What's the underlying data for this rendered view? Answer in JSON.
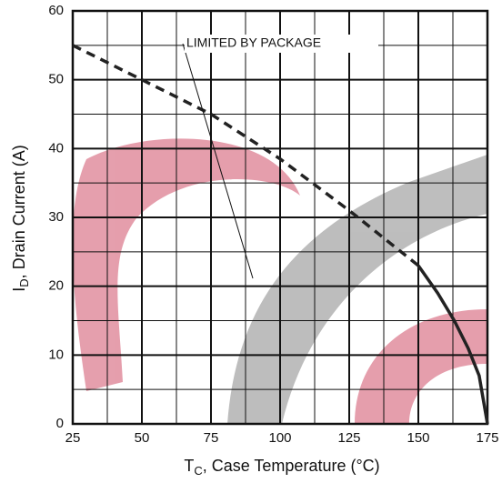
{
  "chart_data": {
    "type": "line",
    "xlabel": {
      "main": "T",
      "sub": "C",
      "rest": ", Case Temperature  (°C)"
    },
    "ylabel": {
      "main": "I",
      "sub": "D",
      "rest": ", Drain Current (A)"
    },
    "annotation": "LIMITED BY PACKAGE",
    "series": [
      {
        "x": [
          25,
          50,
          75,
          100,
          125,
          150
        ],
        "values": [
          55,
          50,
          45,
          38.5,
          31,
          23
        ],
        "color": "#222222",
        "dashed": true
      },
      {
        "x": [
          150,
          157,
          163,
          168,
          172,
          175
        ],
        "values": [
          23,
          19,
          15,
          11,
          7,
          0
        ],
        "color": "#222222",
        "dashed": false
      }
    ],
    "xlim": [
      25,
      175
    ],
    "ylim": [
      0,
      60
    ],
    "xticks": [
      25,
      50,
      75,
      100,
      125,
      150,
      175
    ],
    "yticks": [
      0,
      10,
      20,
      30,
      40,
      50,
      60
    ],
    "xgrid": [
      37.5,
      62.5,
      87.5,
      112.5,
      137.5,
      162.5
    ],
    "ygrid": [
      5,
      15,
      25,
      35,
      45,
      55
    ],
    "grid": true
  }
}
